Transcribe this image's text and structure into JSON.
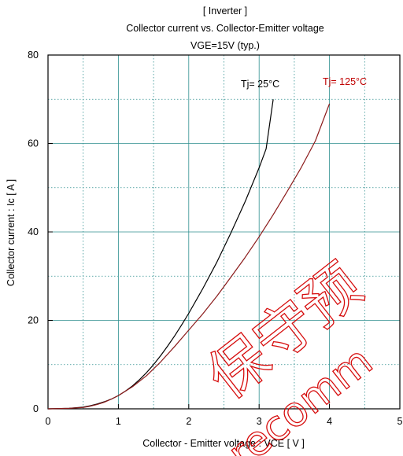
{
  "chart_data": {
    "type": "line",
    "title_lines": [
      "[ Inverter ]",
      "Collector current  vs.  Collector-Emitter voltage",
      "VGE=15V  (typ.)"
    ],
    "xlabel": "Collector - Emitter voltage  :  VCE  [ V ]",
    "ylabel": "Collector current  :  Ic  [ A ]",
    "xlim": [
      0,
      5
    ],
    "ylim": [
      0,
      80
    ],
    "xticks": [
      0,
      1,
      2,
      3,
      4,
      5
    ],
    "yticks": [
      0,
      20,
      40,
      60,
      80
    ],
    "grid": true,
    "series": [
      {
        "name": "Tj= 25°C",
        "color": "#000000",
        "label_color": "#000000",
        "x": [
          0.0,
          0.3,
          0.5,
          0.6,
          0.7,
          0.8,
          0.9,
          1.0,
          1.1,
          1.2,
          1.3,
          1.4,
          1.5,
          1.6,
          1.7,
          1.8,
          1.9,
          2.0,
          2.2,
          2.4,
          2.6,
          2.8,
          3.0,
          3.1,
          3.2
        ],
        "y": [
          0.0,
          0.1,
          0.4,
          0.7,
          1.1,
          1.6,
          2.2,
          3.0,
          4.0,
          5.2,
          6.6,
          8.2,
          10.0,
          12.0,
          14.2,
          16.5,
          19.0,
          21.6,
          27.2,
          33.2,
          39.8,
          46.8,
          54.5,
          58.8,
          70.0
        ]
      },
      {
        "name": "Tj= 125°C",
        "color": "#8b1a1a",
        "label_color": "#c00000",
        "x": [
          0.0,
          0.3,
          0.5,
          0.6,
          0.7,
          0.8,
          0.9,
          1.0,
          1.2,
          1.4,
          1.6,
          1.8,
          2.0,
          2.2,
          2.4,
          2.6,
          2.8,
          3.0,
          3.2,
          3.4,
          3.6,
          3.8,
          4.0
        ],
        "y": [
          0.0,
          0.1,
          0.3,
          0.6,
          1.0,
          1.5,
          2.2,
          3.0,
          5.0,
          7.5,
          10.6,
          14.1,
          17.8,
          21.5,
          25.5,
          29.8,
          34.2,
          38.9,
          43.9,
          49.2,
          54.6,
          60.6,
          69.0
        ]
      }
    ]
  },
  "watermark": {
    "chars": "保守预",
    "text": "recomm"
  }
}
